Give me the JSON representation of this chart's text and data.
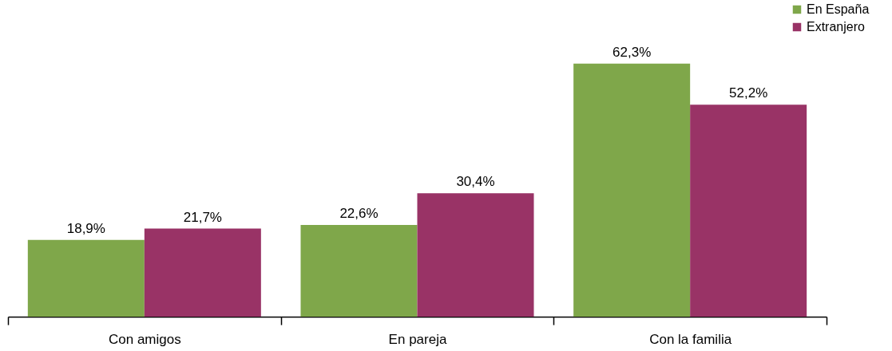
{
  "chart_data": {
    "type": "bar",
    "categories": [
      "Con amigos",
      "En pareja",
      "Con la familia"
    ],
    "series": [
      {
        "name": "En España",
        "color": "#7fa74a",
        "values": [
          18.9,
          22.6,
          62.3
        ],
        "value_labels": [
          "18,9%",
          "22,6%",
          "62,3%"
        ]
      },
      {
        "name": "Extranjero",
        "color": "#993366",
        "values": [
          21.7,
          30.4,
          52.2
        ],
        "value_labels": [
          "21,7%",
          "30,4%",
          "52,2%"
        ]
      }
    ],
    "legend": "top right",
    "tick_labels": "x"
  }
}
